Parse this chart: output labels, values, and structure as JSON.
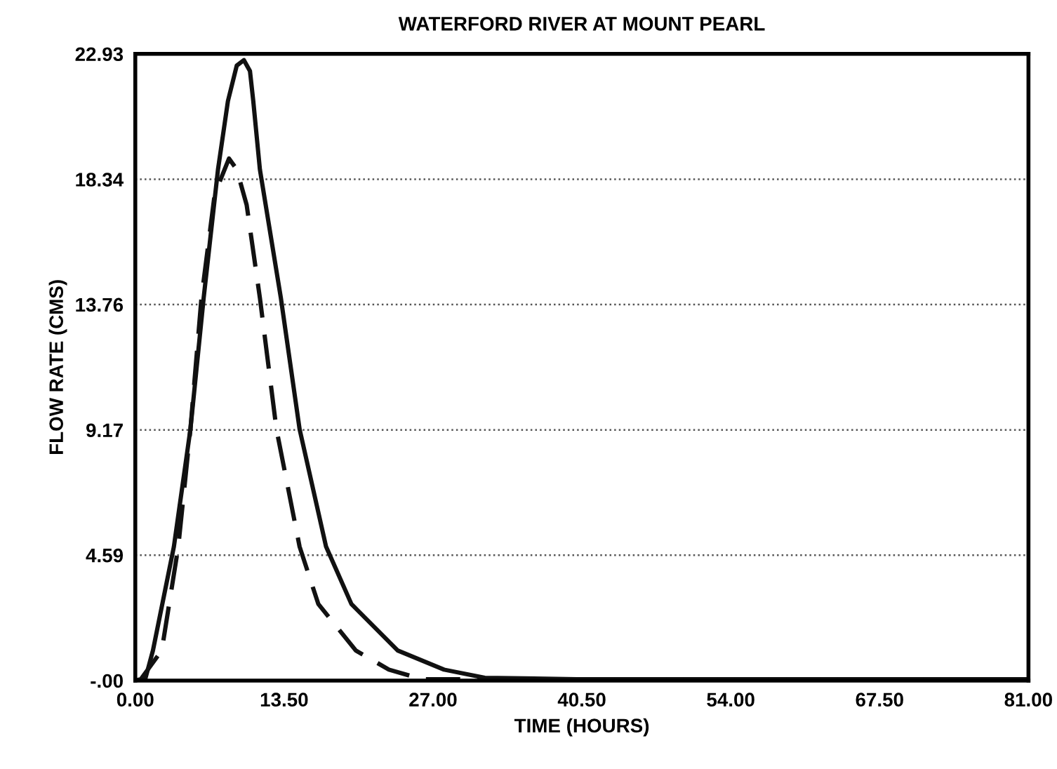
{
  "chart_data": {
    "type": "line",
    "title": "WATERFORD RIVER AT MOUNT PEARL",
    "xlabel": "TIME (HOURS)",
    "ylabel": "FLOW RATE (CMS)",
    "xlim": [
      0,
      81
    ],
    "ylim": [
      0,
      22.93
    ],
    "xticks": [
      {
        "value": 0,
        "label": "0.00"
      },
      {
        "value": 13.5,
        "label": "13.50"
      },
      {
        "value": 27,
        "label": "27.00"
      },
      {
        "value": 40.5,
        "label": "40.50"
      },
      {
        "value": 54,
        "label": "54.00"
      },
      {
        "value": 67.5,
        "label": "67.50"
      },
      {
        "value": 81,
        "label": "81.00"
      }
    ],
    "yticks": [
      {
        "value": 0,
        "label": "-.00"
      },
      {
        "value": 4.59,
        "label": "4.59"
      },
      {
        "value": 9.17,
        "label": "9.17"
      },
      {
        "value": 13.76,
        "label": "13.76"
      },
      {
        "value": 18.34,
        "label": "18.34"
      },
      {
        "value": 22.93,
        "label": "22.93"
      }
    ],
    "grid": "y",
    "legend": false,
    "series": [
      {
        "color": "#111111",
        "line_style": "solid",
        "x": [
          0,
          0.9,
          1.6,
          3.5,
          5.0,
          6.2,
          7.5,
          8.4,
          9.2,
          9.85,
          10.4,
          10.7,
          11.3,
          13.2,
          14.9,
          17.3,
          19.6,
          23.8,
          28,
          31.7,
          40,
          81
        ],
        "values": [
          0,
          0.05,
          1.1,
          4.9,
          9.2,
          14.0,
          18.7,
          21.2,
          22.5,
          22.7,
          22.3,
          21.2,
          18.7,
          14.0,
          9.2,
          4.9,
          2.8,
          1.1,
          0.4,
          0.1,
          0.05,
          0.05
        ]
      },
      {
        "color": "#111111",
        "line_style": "dashed",
        "x": [
          0,
          0.5,
          2.4,
          3.9,
          5.0,
          6.0,
          7.2,
          8.5,
          9.2,
          10.1,
          11.3,
          12.8,
          14.9,
          16.6,
          20.0,
          23,
          26,
          81
        ],
        "values": [
          0,
          0.05,
          1.1,
          4.9,
          9.2,
          14.0,
          17.8,
          19.1,
          18.7,
          17.4,
          14.0,
          9.2,
          4.9,
          2.8,
          1.1,
          0.4,
          0.05,
          0.05
        ]
      }
    ]
  }
}
